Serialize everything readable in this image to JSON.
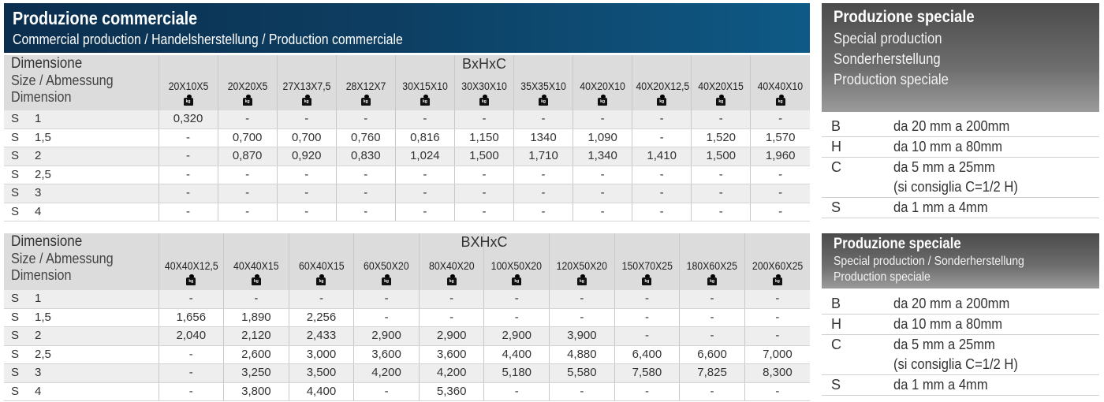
{
  "header": {
    "title": "Produzione commerciale",
    "subtitle": "Commercial production / Handelsherstellung / Production commerciale"
  },
  "dimension_label": {
    "title": "Dimensione",
    "line2": "Size / Abmessung",
    "line3": "Dimension"
  },
  "kg_icon_text": "kg",
  "table1": {
    "group_header": "BxHxC",
    "columns": [
      "20X10X5",
      "20X20X5",
      "27X13X7,5",
      "28X12X7",
      "30X15X10",
      "30X30X10",
      "35X35X10",
      "40X20X10",
      "40X20X12,5",
      "40X20X15",
      "40X40X10"
    ],
    "rows": [
      {
        "s": "S",
        "size": "1",
        "values": [
          "0,320",
          "-",
          "-",
          "-",
          "-",
          "-",
          "-",
          "-",
          "-",
          "-",
          "-"
        ]
      },
      {
        "s": "S",
        "size": "1,5",
        "values": [
          "-",
          "0,700",
          "0,700",
          "0,760",
          "0,816",
          "1,150",
          "1340",
          "1,090",
          "-",
          "1,520",
          "1,570"
        ]
      },
      {
        "s": "S",
        "size": "2",
        "values": [
          "-",
          "0,870",
          "0,920",
          "0,830",
          "1,024",
          "1,500",
          "1,710",
          "1,340",
          "1,410",
          "1,500",
          "1,960"
        ]
      },
      {
        "s": "S",
        "size": "2,5",
        "values": [
          "-",
          "-",
          "-",
          "-",
          "-",
          "-",
          "-",
          "-",
          "-",
          "-",
          "-"
        ]
      },
      {
        "s": "S",
        "size": "3",
        "values": [
          "-",
          "-",
          "-",
          "-",
          "-",
          "-",
          "-",
          "-",
          "-",
          "-",
          "-"
        ]
      },
      {
        "s": "S",
        "size": "4",
        "values": [
          "-",
          "-",
          "-",
          "-",
          "-",
          "-",
          "-",
          "-",
          "-",
          "-",
          "-"
        ]
      }
    ]
  },
  "table2": {
    "group_header": "BXHxC",
    "columns": [
      "40X40X12,5",
      "40X40X15",
      "60X40X15",
      "60X50X20",
      "80X40X20",
      "100X50X20",
      "120X50X20",
      "150X70X25",
      "180X60X25",
      "200X60X25"
    ],
    "rows": [
      {
        "s": "S",
        "size": "1",
        "values": [
          "-",
          "-",
          "-",
          "-",
          "-",
          "-",
          "-",
          "-",
          "-",
          "-"
        ]
      },
      {
        "s": "S",
        "size": "1,5",
        "values": [
          "1,656",
          "1,890",
          "2,256",
          "-",
          "-",
          "-",
          "-",
          "-",
          "-",
          "-"
        ]
      },
      {
        "s": "S",
        "size": "2",
        "values": [
          "2,040",
          "2,120",
          "2,433",
          "2,900",
          "2,900",
          "2,900",
          "3,900",
          "-",
          "-",
          "-"
        ]
      },
      {
        "s": "S",
        "size": "2,5",
        "values": [
          "-",
          "2,600",
          "3,000",
          "3,600",
          "3,600",
          "4,400",
          "4,880",
          "6,400",
          "6,600",
          "7,000"
        ]
      },
      {
        "s": "S",
        "size": "3",
        "values": [
          "-",
          "3,250",
          "3,500",
          "4,200",
          "4,200",
          "5,180",
          "5,580",
          "7,580",
          "7,825",
          "8,300"
        ]
      },
      {
        "s": "S",
        "size": "4",
        "values": [
          "-",
          "3,800",
          "4,400",
          "-",
          "5,360",
          "-",
          "-",
          "-",
          "-",
          "-"
        ]
      }
    ]
  },
  "special1": {
    "title": "Produzione speciale",
    "lines": [
      "Special production",
      "Sonderherstellung",
      "Production speciale"
    ],
    "specs": [
      {
        "k": "B",
        "v": "da 20 mm a 200mm"
      },
      {
        "k": "H",
        "v": "da 10 mm a 80mm"
      },
      {
        "k": "C",
        "v": "da 5 mm a 25mm",
        "v2": "(si consiglia C=1/2 H)"
      },
      {
        "k": "S",
        "v": "da 1 mm a 4mm"
      }
    ]
  },
  "special2": {
    "title": "Produzione speciale",
    "lines": [
      "Special production / Sonderherstellung",
      "Production speciale"
    ],
    "specs": [
      {
        "k": "B",
        "v": "da 20 mm a 200mm"
      },
      {
        "k": "H",
        "v": "da 10 mm a 80mm"
      },
      {
        "k": "C",
        "v": "da 5 mm a 25mm",
        "v2": "(si consiglia C=1/2 H)"
      },
      {
        "k": "S",
        "v": "da 1 mm a 4mm"
      }
    ]
  }
}
